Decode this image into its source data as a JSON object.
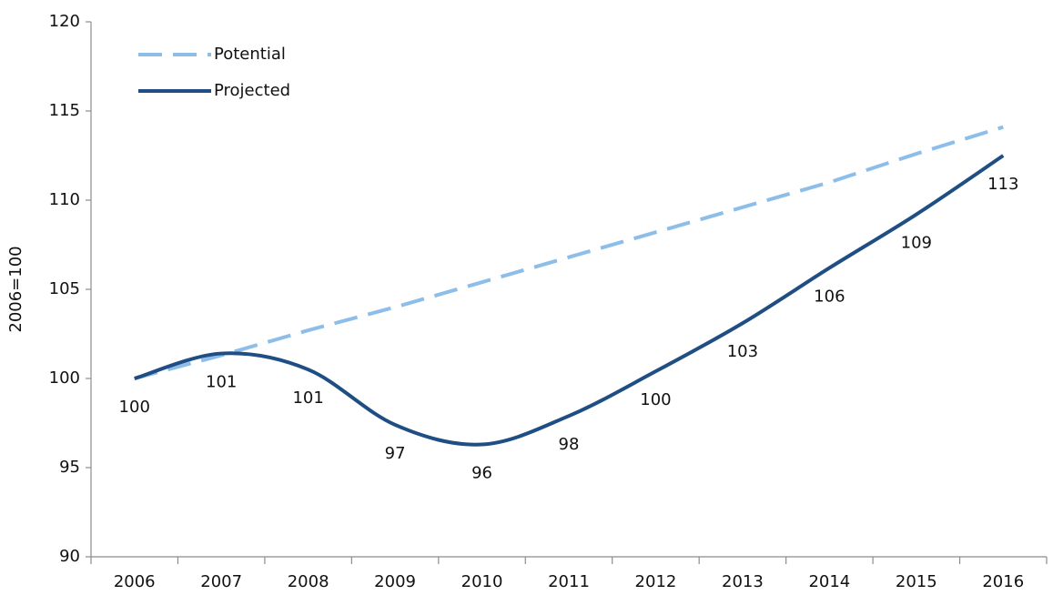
{
  "chart_data": {
    "type": "line",
    "y_label": "2006=100",
    "categories": [
      "2006",
      "2007",
      "2008",
      "2009",
      "2010",
      "2011",
      "2012",
      "2013",
      "2014",
      "2015",
      "2016"
    ],
    "series": [
      {
        "name": "Potential",
        "color": "#8dbde9",
        "dashed": true,
        "values": [
          100,
          101.3,
          102.7,
          104.0,
          105.4,
          106.8,
          108.2,
          109.6,
          111.0,
          112.6,
          114.1
        ]
      },
      {
        "name": "Projected",
        "color": "#1f4e84",
        "dashed": false,
        "values": [
          100.0,
          101.4,
          100.5,
          97.4,
          96.3,
          97.9,
          100.4,
          103.1,
          106.2,
          109.2,
          112.5
        ],
        "value_labels": [
          "100",
          "101",
          "101",
          "97",
          "96",
          "98",
          "100",
          "103",
          "106",
          "109",
          "113"
        ]
      }
    ],
    "ylim": [
      90,
      120
    ],
    "yticks": [
      90,
      95,
      100,
      105,
      110,
      115,
      120
    ],
    "grid": false,
    "legend": "upper left"
  }
}
